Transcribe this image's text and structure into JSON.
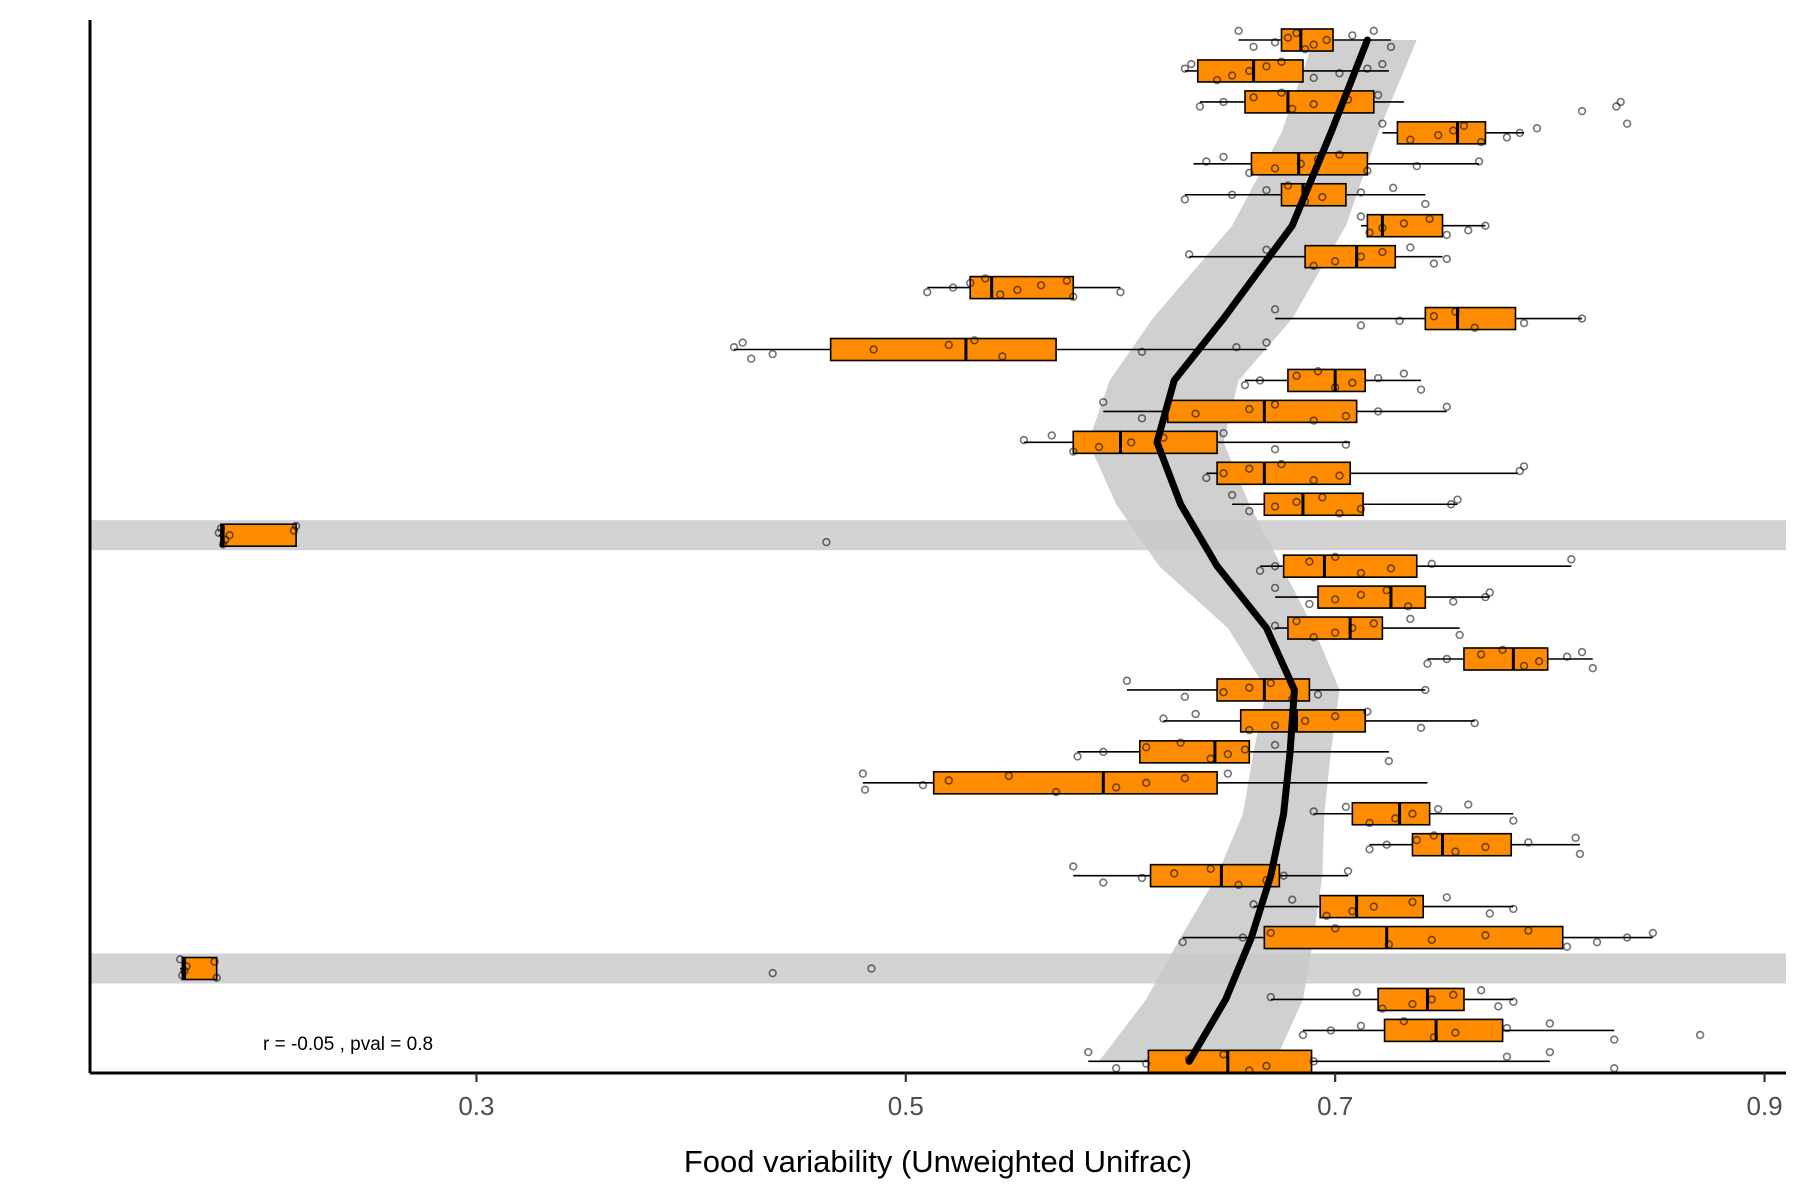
{
  "chart_data": {
    "type": "boxplot",
    "orientation": "horizontal",
    "xlabel": "Food variability (Unweighted Unifrac)",
    "ylabel": "",
    "xlim": [
      0.12,
      0.91
    ],
    "x_ticks": [
      0.3,
      0.5,
      0.7,
      0.9
    ],
    "x_tick_labels": [
      "0.3",
      "0.5",
      "0.7",
      "0.9"
    ],
    "y_ticks_shown": false,
    "grid": false,
    "annotation": "r = -0.05 , pval = 0.8",
    "highlighted_rows": [
      17,
      31
    ],
    "colors": {
      "box_fill": "#FF8C00",
      "box_stroke": "#000000",
      "highlight_band": "#D3D3D3",
      "smooth_line": "#000000",
      "smooth_band": "#C8C8C8",
      "points": "#000000"
    },
    "boxes": [
      {
        "min": 0.655,
        "q1": 0.675,
        "median": 0.684,
        "q3": 0.699,
        "max": 0.726,
        "points": [
          0.655,
          0.662,
          0.672,
          0.678,
          0.682,
          0.686,
          0.69,
          0.696,
          0.708,
          0.718,
          0.726
        ]
      },
      {
        "min": 0.63,
        "q1": 0.636,
        "median": 0.662,
        "q3": 0.685,
        "max": 0.725,
        "points": [
          0.63,
          0.633,
          0.645,
          0.652,
          0.66,
          0.668,
          0.675,
          0.69,
          0.702,
          0.715,
          0.722
        ]
      },
      {
        "min": 0.637,
        "q1": 0.658,
        "median": 0.678,
        "q3": 0.718,
        "max": 0.732,
        "points": [
          0.637,
          0.648,
          0.662,
          0.675,
          0.68,
          0.69,
          0.706,
          0.72,
          0.815,
          0.831,
          0.833
        ]
      },
      {
        "min": 0.722,
        "q1": 0.729,
        "median": 0.757,
        "q3": 0.77,
        "max": 0.788,
        "points": [
          0.722,
          0.735,
          0.748,
          0.755,
          0.76,
          0.768,
          0.78,
          0.786,
          0.794,
          0.836
        ]
      },
      {
        "min": 0.634,
        "q1": 0.661,
        "median": 0.683,
        "q3": 0.715,
        "max": 0.767,
        "points": [
          0.64,
          0.648,
          0.66,
          0.672,
          0.684,
          0.692,
          0.702,
          0.715,
          0.738,
          0.767
        ]
      },
      {
        "min": 0.63,
        "q1": 0.675,
        "median": 0.685,
        "q3": 0.705,
        "max": 0.742,
        "points": [
          0.63,
          0.652,
          0.668,
          0.678,
          0.686,
          0.694,
          0.712,
          0.727,
          0.742
        ]
      },
      {
        "min": 0.712,
        "q1": 0.715,
        "median": 0.722,
        "q3": 0.75,
        "max": 0.77,
        "points": [
          0.712,
          0.716,
          0.722,
          0.732,
          0.744,
          0.752,
          0.762,
          0.77
        ]
      },
      {
        "min": 0.632,
        "q1": 0.686,
        "median": 0.71,
        "q3": 0.728,
        "max": 0.75,
        "points": [
          0.632,
          0.668,
          0.69,
          0.7,
          0.712,
          0.722,
          0.735,
          0.746,
          0.752
        ]
      },
      {
        "min": 0.51,
        "q1": 0.53,
        "median": 0.54,
        "q3": 0.578,
        "max": 0.6,
        "points": [
          0.51,
          0.522,
          0.53,
          0.537,
          0.544,
          0.552,
          0.563,
          0.575,
          0.578,
          0.6
        ]
      },
      {
        "min": 0.672,
        "q1": 0.742,
        "median": 0.757,
        "q3": 0.784,
        "max": 0.815,
        "points": [
          0.672,
          0.712,
          0.73,
          0.746,
          0.756,
          0.765,
          0.788,
          0.815
        ]
      },
      {
        "min": 0.42,
        "q1": 0.465,
        "median": 0.528,
        "q3": 0.57,
        "max": 0.668,
        "points": [
          0.42,
          0.424,
          0.428,
          0.438,
          0.485,
          0.52,
          0.532,
          0.545,
          0.61,
          0.654,
          0.668
        ]
      },
      {
        "min": 0.658,
        "q1": 0.678,
        "median": 0.7,
        "q3": 0.714,
        "max": 0.74,
        "points": [
          0.658,
          0.665,
          0.682,
          0.692,
          0.7,
          0.708,
          0.72,
          0.732,
          0.74
        ]
      },
      {
        "min": 0.592,
        "q1": 0.622,
        "median": 0.667,
        "q3": 0.71,
        "max": 0.752,
        "points": [
          0.592,
          0.61,
          0.635,
          0.66,
          0.672,
          0.69,
          0.705,
          0.72,
          0.752
        ]
      },
      {
        "min": 0.555,
        "q1": 0.578,
        "median": 0.6,
        "q3": 0.645,
        "max": 0.707,
        "points": [
          0.555,
          0.568,
          0.578,
          0.59,
          0.605,
          0.62,
          0.648,
          0.672,
          0.705
        ]
      },
      {
        "min": 0.64,
        "q1": 0.645,
        "median": 0.667,
        "q3": 0.707,
        "max": 0.785,
        "points": [
          0.64,
          0.648,
          0.66,
          0.675,
          0.69,
          0.702,
          0.786,
          0.788
        ]
      },
      {
        "min": 0.652,
        "q1": 0.667,
        "median": 0.685,
        "q3": 0.713,
        "max": 0.757,
        "points": [
          0.652,
          0.66,
          0.672,
          0.682,
          0.694,
          0.702,
          0.712,
          0.754,
          0.757
        ]
      },
      {
        "min": 0.18,
        "q1": 0.181,
        "median": 0.182,
        "q3": 0.216,
        "max": 0.216,
        "points": [
          0.18,
          0.181,
          0.182,
          0.183,
          0.185,
          0.215,
          0.216,
          0.463
        ]
      },
      {
        "min": 0.665,
        "q1": 0.676,
        "median": 0.695,
        "q3": 0.738,
        "max": 0.81,
        "points": [
          0.665,
          0.672,
          0.688,
          0.7,
          0.712,
          0.726,
          0.745,
          0.81
        ]
      },
      {
        "min": 0.672,
        "q1": 0.692,
        "median": 0.726,
        "q3": 0.742,
        "max": 0.772,
        "points": [
          0.672,
          0.688,
          0.7,
          0.712,
          0.724,
          0.734,
          0.755,
          0.77,
          0.772
        ]
      },
      {
        "min": 0.672,
        "q1": 0.678,
        "median": 0.707,
        "q3": 0.722,
        "max": 0.758,
        "points": [
          0.672,
          0.682,
          0.69,
          0.7,
          0.708,
          0.718,
          0.735,
          0.758
        ]
      },
      {
        "min": 0.743,
        "q1": 0.76,
        "median": 0.783,
        "q3": 0.799,
        "max": 0.82,
        "points": [
          0.743,
          0.752,
          0.768,
          0.778,
          0.788,
          0.795,
          0.808,
          0.815,
          0.82
        ]
      },
      {
        "min": 0.603,
        "q1": 0.645,
        "median": 0.667,
        "q3": 0.688,
        "max": 0.742,
        "points": [
          0.603,
          0.63,
          0.648,
          0.66,
          0.67,
          0.68,
          0.692,
          0.742
        ]
      },
      {
        "min": 0.62,
        "q1": 0.656,
        "median": 0.682,
        "q3": 0.714,
        "max": 0.765,
        "points": [
          0.62,
          0.635,
          0.66,
          0.672,
          0.686,
          0.7,
          0.715,
          0.74,
          0.765
        ]
      },
      {
        "min": 0.58,
        "q1": 0.609,
        "median": 0.644,
        "q3": 0.66,
        "max": 0.725,
        "points": [
          0.58,
          0.592,
          0.612,
          0.628,
          0.642,
          0.65,
          0.658,
          0.672,
          0.725
        ]
      },
      {
        "min": 0.48,
        "q1": 0.513,
        "median": 0.592,
        "q3": 0.645,
        "max": 0.743,
        "points": [
          0.48,
          0.481,
          0.508,
          0.52,
          0.548,
          0.57,
          0.598,
          0.612,
          0.63,
          0.65
        ]
      },
      {
        "min": 0.69,
        "q1": 0.708,
        "median": 0.73,
        "q3": 0.744,
        "max": 0.783,
        "points": [
          0.69,
          0.705,
          0.716,
          0.728,
          0.736,
          0.748,
          0.762,
          0.783
        ]
      },
      {
        "min": 0.716,
        "q1": 0.736,
        "median": 0.75,
        "q3": 0.782,
        "max": 0.814,
        "points": [
          0.716,
          0.724,
          0.738,
          0.746,
          0.756,
          0.77,
          0.79,
          0.812,
          0.814
        ]
      },
      {
        "min": 0.578,
        "q1": 0.614,
        "median": 0.647,
        "q3": 0.674,
        "max": 0.706,
        "points": [
          0.578,
          0.592,
          0.61,
          0.625,
          0.642,
          0.655,
          0.668,
          0.676,
          0.706
        ]
      },
      {
        "min": 0.662,
        "q1": 0.693,
        "median": 0.71,
        "q3": 0.741,
        "max": 0.783,
        "points": [
          0.662,
          0.68,
          0.696,
          0.708,
          0.718,
          0.736,
          0.752,
          0.772,
          0.783
        ]
      },
      {
        "min": 0.629,
        "q1": 0.667,
        "median": 0.724,
        "q3": 0.806,
        "max": 0.848,
        "points": [
          0.629,
          0.657,
          0.67,
          0.7,
          0.725,
          0.745,
          0.77,
          0.79,
          0.808,
          0.822,
          0.836,
          0.848
        ]
      },
      {
        "min": 0.162,
        "q1": 0.163,
        "median": 0.164,
        "q3": 0.179,
        "max": 0.179,
        "points": [
          0.162,
          0.163,
          0.164,
          0.165,
          0.178,
          0.179,
          0.438,
          0.484
        ]
      },
      {
        "min": 0.67,
        "q1": 0.72,
        "median": 0.743,
        "q3": 0.76,
        "max": 0.783,
        "points": [
          0.67,
          0.71,
          0.722,
          0.736,
          0.745,
          0.755,
          0.768,
          0.776,
          0.783
        ]
      },
      {
        "min": 0.685,
        "q1": 0.723,
        "median": 0.747,
        "q3": 0.778,
        "max": 0.83,
        "points": [
          0.685,
          0.698,
          0.712,
          0.732,
          0.746,
          0.756,
          0.78,
          0.8,
          0.83,
          0.87
        ]
      },
      {
        "min": 0.585,
        "q1": 0.613,
        "median": 0.65,
        "q3": 0.689,
        "max": 0.8,
        "points": [
          0.585,
          0.598,
          0.612,
          0.632,
          0.648,
          0.66,
          0.668,
          0.69,
          0.78,
          0.8,
          0.83
        ]
      }
    ],
    "smooth_line": {
      "row": [
        1,
        4,
        7,
        10,
        12,
        14,
        16,
        18,
        20,
        22,
        24,
        26,
        28,
        30,
        32,
        34
      ],
      "x": [
        0.715,
        0.698,
        0.68,
        0.648,
        0.625,
        0.617,
        0.628,
        0.645,
        0.668,
        0.681,
        0.679,
        0.676,
        0.67,
        0.661,
        0.649,
        0.632
      ],
      "band_lower": [
        0.69,
        0.675,
        0.652,
        0.615,
        0.595,
        0.585,
        0.598,
        0.618,
        0.65,
        0.668,
        0.662,
        0.657,
        0.645,
        0.628,
        0.612,
        0.59
      ],
      "band_upper": [
        0.738,
        0.72,
        0.705,
        0.68,
        0.655,
        0.648,
        0.66,
        0.675,
        0.69,
        0.702,
        0.698,
        0.695,
        0.694,
        0.69,
        0.685,
        0.672
      ]
    }
  }
}
